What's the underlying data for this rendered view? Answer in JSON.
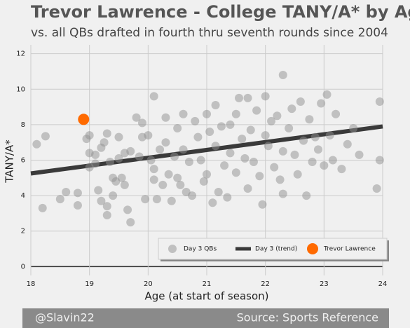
{
  "chart_data": {
    "type": "scatter",
    "title": "Trevor Lawrence - College TANY/A* by Age",
    "subtitle": "vs. all QBs drafted in fourth thru seventh rounds since 2004",
    "x_label": "Age (at start of season)",
    "y_label": "TANY/A*",
    "xlim": [
      18,
      24
    ],
    "ylim": [
      -0.5,
      12.5
    ],
    "xticks": [
      18,
      19,
      20,
      21,
      22,
      23,
      24
    ],
    "yticks": [
      0,
      2,
      4,
      6,
      8,
      10,
      12
    ],
    "grid": true,
    "legend": "lower right",
    "series": [
      {
        "name": "Day 3 QBs",
        "style": "scatter",
        "color": "#8f8f8f",
        "x": [
          18.1,
          18.25,
          18.2,
          18.5,
          18.6,
          18.8,
          18.8,
          18.95,
          19.0,
          19.0,
          19.0,
          19.1,
          19.1,
          19.15,
          19.2,
          19.2,
          19.25,
          19.3,
          19.3,
          19.3,
          19.35,
          19.4,
          19.4,
          19.45,
          19.5,
          19.5,
          19.55,
          19.6,
          19.6,
          19.65,
          19.7,
          19.7,
          19.8,
          19.85,
          19.9,
          19.9,
          19.95,
          20.0,
          20.05,
          20.1,
          20.1,
          20.1,
          20.15,
          20.2,
          20.25,
          20.3,
          20.3,
          20.35,
          20.4,
          20.45,
          20.5,
          20.5,
          20.55,
          20.6,
          20.6,
          20.65,
          20.7,
          20.75,
          20.8,
          20.85,
          20.9,
          20.95,
          21.0,
          21.0,
          21.05,
          21.1,
          21.15,
          21.15,
          21.2,
          21.25,
          21.3,
          21.35,
          21.4,
          21.4,
          21.5,
          21.5,
          21.55,
          21.6,
          21.65,
          21.7,
          21.7,
          21.75,
          21.8,
          21.85,
          21.9,
          21.95,
          22.0,
          22.0,
          22.05,
          22.1,
          22.15,
          22.2,
          22.25,
          22.3,
          22.3,
          22.3,
          22.4,
          22.45,
          22.5,
          22.55,
          22.6,
          22.65,
          22.7,
          22.75,
          22.8,
          22.85,
          22.9,
          22.95,
          23.0,
          23.05,
          23.1,
          23.15,
          23.2,
          23.3,
          23.4,
          23.5,
          23.6,
          23.9,
          23.95,
          23.95
        ],
        "values": [
          6.9,
          7.35,
          3.3,
          3.8,
          4.2,
          4.15,
          3.45,
          7.2,
          7.4,
          6.4,
          5.6,
          6.3,
          5.8,
          4.3,
          6.7,
          3.7,
          7.0,
          7.5,
          3.4,
          2.9,
          5.9,
          5.0,
          4.0,
          4.8,
          7.3,
          6.1,
          5.0,
          4.6,
          6.4,
          3.2,
          2.5,
          6.5,
          8.4,
          6.2,
          8.1,
          7.3,
          3.8,
          7.4,
          6.0,
          9.6,
          5.5,
          4.9,
          3.8,
          6.6,
          4.6,
          8.4,
          7.0,
          5.2,
          3.7,
          6.2,
          7.8,
          5.0,
          4.6,
          8.6,
          6.6,
          4.2,
          5.9,
          4.0,
          8.2,
          7.3,
          6.0,
          4.8,
          8.6,
          5.2,
          7.6,
          3.6,
          9.1,
          6.8,
          4.2,
          7.9,
          5.7,
          3.9,
          8.0,
          6.4,
          8.6,
          5.3,
          9.5,
          7.2,
          6.1,
          9.5,
          4.4,
          7.7,
          5.9,
          8.8,
          5.1,
          3.5,
          9.6,
          7.4,
          6.8,
          8.2,
          5.6,
          8.5,
          4.9,
          10.8,
          6.5,
          4.1,
          7.8,
          8.9,
          6.3,
          5.2,
          9.3,
          7.1,
          4.0,
          8.3,
          5.9,
          7.3,
          6.6,
          9.2,
          5.7,
          9.7,
          7.4,
          6.0,
          8.6,
          5.5,
          6.9,
          7.8,
          6.3,
          4.4,
          6.0,
          9.3
        ]
      },
      {
        "name": "Day 3 (trend)",
        "style": "line",
        "color": "#3a3a3a",
        "x": [
          18,
          24
        ],
        "values": [
          5.25,
          7.9
        ]
      },
      {
        "name": "Trevor Lawrence",
        "style": "scatter",
        "color": "#ff6a00",
        "x": [
          18.9
        ],
        "values": [
          8.3
        ]
      }
    ]
  },
  "footer": {
    "left": "@Slavin22",
    "right": "Source: Sports Reference"
  }
}
